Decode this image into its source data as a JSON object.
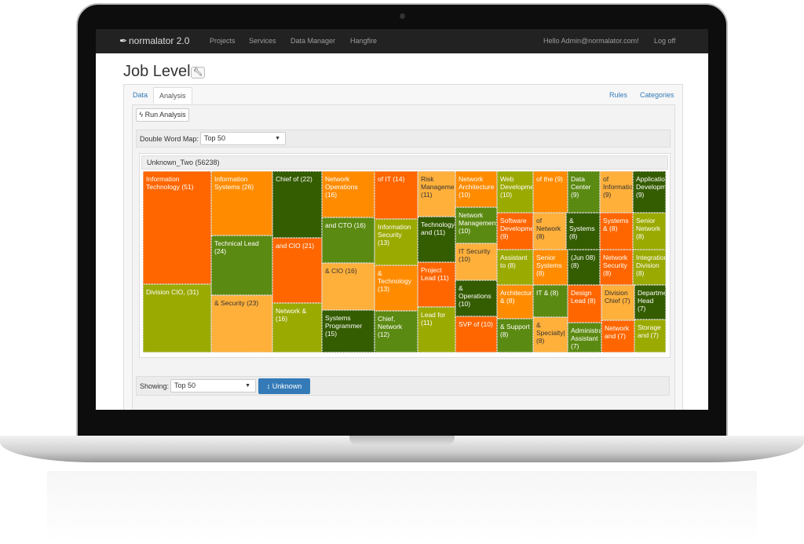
{
  "nav": {
    "brand": "normalator 2.0",
    "items": [
      "Projects",
      "Services",
      "Data Manager",
      "Hangfire"
    ],
    "greeting": "Hello Admin@normalator.com!",
    "logoff": "Log off"
  },
  "page": {
    "title": "Job Level"
  },
  "tabs": {
    "left": [
      "Data",
      "Analysis"
    ],
    "active": "Analysis",
    "right": [
      "Rules",
      "Categories"
    ]
  },
  "toolbar": {
    "run_label": "Run Analysis"
  },
  "map": {
    "label": "Double Word Map:",
    "selected": "Top 50",
    "root": "Unknown_Two (56238)"
  },
  "showing": {
    "label": "Showing:",
    "selected": "Top 50",
    "button": "Unknown"
  },
  "colors": {
    "orange_red": "#ff6600",
    "orange": "#ff8c00",
    "light_orange": "#ffb03b",
    "olive": "#9aaa00",
    "green": "#5b8a12",
    "dark_green": "#345c00",
    "primary": "#337ab7"
  },
  "chart_data": {
    "type": "treemap",
    "root": "Unknown_Two",
    "root_value": 56238,
    "cells": [
      {
        "label": "Information Technology",
        "value": 51,
        "color": "orange_red"
      },
      {
        "label": "Division CIO,",
        "value": 31,
        "color": "olive"
      },
      {
        "label": "Information Systems",
        "value": 26,
        "color": "orange"
      },
      {
        "label": "Technical Lead",
        "value": 24,
        "color": "green"
      },
      {
        "label": "& Security",
        "value": 23,
        "color": "light_orange"
      },
      {
        "label": "Chief of",
        "value": 22,
        "color": "dark_green"
      },
      {
        "label": "and CIO",
        "value": 21,
        "color": "orange_red"
      },
      {
        "label": "Network &",
        "value": 16,
        "color": "olive"
      },
      {
        "label": "Network Operations",
        "value": 16,
        "color": "orange"
      },
      {
        "label": "and CTO",
        "value": 16,
        "color": "green"
      },
      {
        "label": "& CIO",
        "value": 16,
        "color": "light_orange"
      },
      {
        "label": "Systems Programmer",
        "value": 15,
        "color": "dark_green"
      },
      {
        "label": "of IT",
        "value": 14,
        "color": "orange_red"
      },
      {
        "label": "Information Security",
        "value": 13,
        "color": "olive"
      },
      {
        "label": "& Technology",
        "value": 13,
        "color": "orange"
      },
      {
        "label": "Chief, Network",
        "value": 12,
        "color": "green"
      },
      {
        "label": "Risk Management",
        "value": 11,
        "color": "light_orange"
      },
      {
        "label": "Technology and",
        "value": 11,
        "color": "dark_green"
      },
      {
        "label": "Project Lead",
        "value": 11,
        "color": "orange_red"
      },
      {
        "label": "Lead for",
        "value": 11,
        "color": "olive"
      },
      {
        "label": "Network Architecture",
        "value": 10,
        "color": "orange"
      },
      {
        "label": "Network Management",
        "value": 10,
        "color": "green"
      },
      {
        "label": "IT Security",
        "value": 10,
        "color": "light_orange"
      },
      {
        "label": "& Operations",
        "value": 10,
        "color": "dark_green"
      },
      {
        "label": "SVP of",
        "value": 10,
        "color": "orange_red"
      },
      {
        "label": "Web Development",
        "value": 10,
        "color": "olive"
      },
      {
        "label": "of the",
        "value": 9,
        "color": "orange"
      },
      {
        "label": "Data Center",
        "value": 9,
        "color": "green"
      },
      {
        "label": "of Information",
        "value": 9,
        "color": "light_orange"
      },
      {
        "label": "Application Development",
        "value": 9,
        "color": "dark_green"
      },
      {
        "label": "Software Development",
        "value": 9,
        "color": "orange_red"
      },
      {
        "label": "of Network",
        "value": 8,
        "color": "light_orange"
      },
      {
        "label": "& Systems",
        "value": 8,
        "color": "dark_green"
      },
      {
        "label": "Systems &",
        "value": 8,
        "color": "orange_red"
      },
      {
        "label": "Senior Network",
        "value": 8,
        "color": "olive"
      },
      {
        "label": "Assistant to",
        "value": 8,
        "color": "olive"
      },
      {
        "label": "Senior Systems",
        "value": 8,
        "color": "orange"
      },
      {
        "label": "(Jun 08)",
        "value": 8,
        "color": "dark_green"
      },
      {
        "label": "Network Security",
        "value": 8,
        "color": "orange_red"
      },
      {
        "label": "Integration Division",
        "value": 8,
        "color": "olive"
      },
      {
        "label": "Architecture &",
        "value": 8,
        "color": "orange"
      },
      {
        "label": "IT &",
        "value": 8,
        "color": "green"
      },
      {
        "label": "& Support",
        "value": 8,
        "color": "green"
      },
      {
        "label": "& Specialty|",
        "value": 8,
        "color": "light_orange"
      },
      {
        "label": "Design Lead",
        "value": 8,
        "color": "orange_red"
      },
      {
        "label": "Division Chief",
        "value": 7,
        "color": "light_orange"
      },
      {
        "label": "Department Head",
        "value": 7,
        "color": "dark_green"
      },
      {
        "label": "Administrative Assistant",
        "value": 7,
        "color": "green"
      },
      {
        "label": "Network and",
        "value": 7,
        "color": "orange_red"
      },
      {
        "label": "Storage and",
        "value": 7,
        "color": "olive"
      }
    ]
  }
}
